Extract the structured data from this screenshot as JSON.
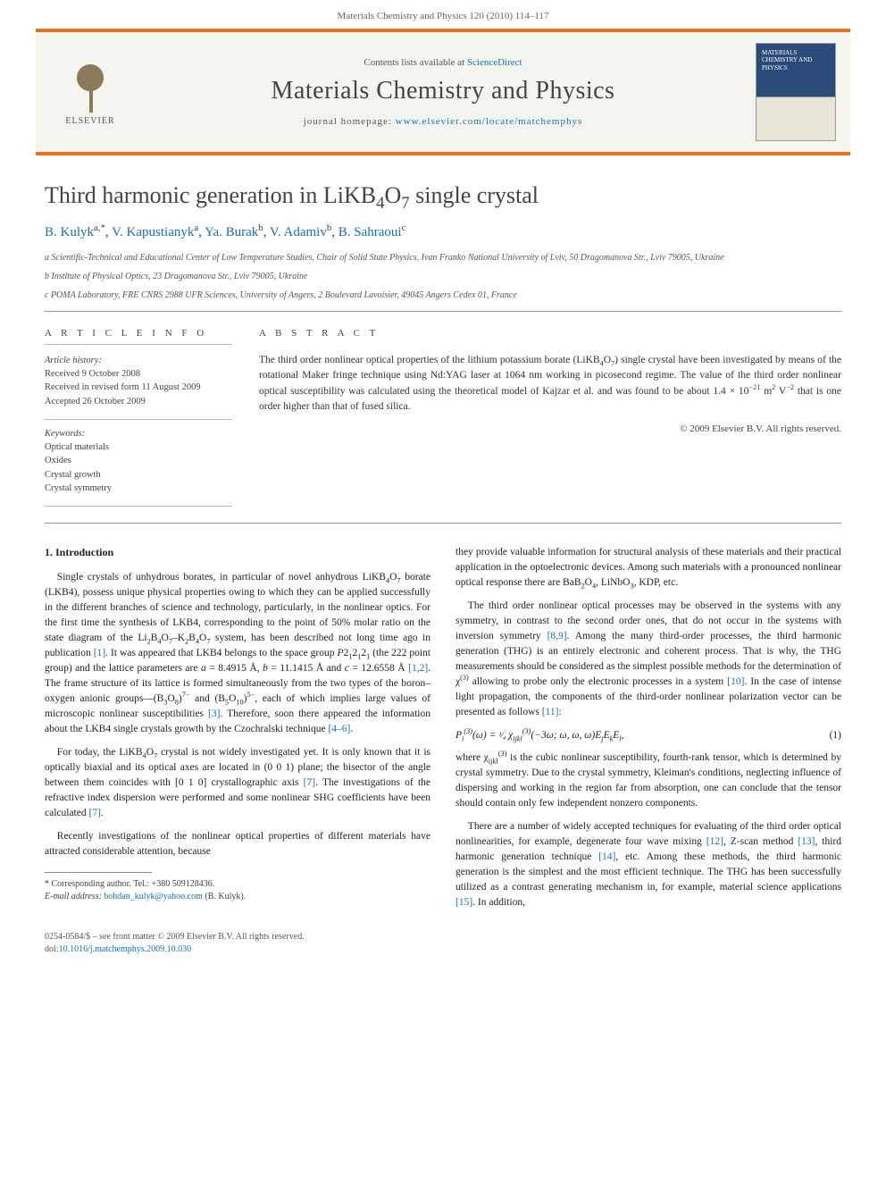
{
  "colors": {
    "accent": "#e57220",
    "link": "#1a6fb3",
    "masthead_bg": "#f5f5f0",
    "cover_top": "#2a4a7a",
    "cover_bottom": "#e8e4d8",
    "text": "#333333",
    "rule": "#999999"
  },
  "typography": {
    "title_fontsize": 26,
    "journal_fontsize": 28,
    "body_fontsize": 11.5,
    "meta_fontsize": 10.5
  },
  "header": {
    "running": "Materials Chemistry and Physics 120 (2010) 114–117"
  },
  "masthead": {
    "publisher": "ELSEVIER",
    "contents_prefix": "Contents lists available at ",
    "contents_link": "ScienceDirect",
    "journal": "Materials Chemistry and Physics",
    "homepage_prefix": "journal homepage: ",
    "homepage_url": "www.elsevier.com/locate/matchemphys",
    "cover_title": "MATERIALS\nCHEMISTRY AND\nPHYSICS"
  },
  "article": {
    "title_html": "Third harmonic generation in LiKB<sub>4</sub>O<sub>7</sub> single crystal",
    "authors_html": "<a href='#'>B. Kulyk</a><sup>a,*</sup>, <a href='#'>V. Kapustianyk</a><sup>a</sup>, <a href='#'>Ya. Burak</a><sup>b</sup>, <a href='#'>V. Adamiv</a><sup>b</sup>, <a href='#'>B. Sahraoui</a><sup>c</sup>",
    "affiliations": [
      "a Scientific-Technical and Educational Center of Low Temperature Studies, Chair of Solid State Physics, Ivan Franko National University of Lviv, 50 Dragomanova Str., Lviv 79005, Ukraine",
      "b Institute of Physical Optics, 23 Dragomanova Str., Lviv 79005, Ukraine",
      "c POMA Laboratory, FRE CNRS 2988 UFR Sciences, University of Angers, 2 Boulevard Lavoisier, 49045 Angers Cedex 01, France"
    ]
  },
  "meta": {
    "info_heading": "A R T I C L E   I N F O",
    "history_label": "Article history:",
    "history": [
      "Received 9 October 2008",
      "Received in revised form 11 August 2009",
      "Accepted 26 October 2009"
    ],
    "keywords_label": "Keywords:",
    "keywords": [
      "Optical materials",
      "Oxides",
      "Crystal growth",
      "Crystal symmetry"
    ]
  },
  "abstract": {
    "heading": "A B S T R A C T",
    "text_html": "The third order nonlinear optical properties of the lithium potassium borate (LiKB<sub>4</sub>O<sub>7</sub>) single crystal have been investigated by means of the rotational Maker fringe technique using Nd:YAG laser at 1064 nm working in picosecond regime. The value of the third order nonlinear optical susceptibility was calculated using the theoretical model of Kajzar et al. and was found to be about 1.4 × 10<sup>−21</sup> m<sup>2</sup> V<sup>−2</sup> that is one order higher than that of fused silica.",
    "copyright": "© 2009 Elsevier B.V. All rights reserved."
  },
  "body": {
    "section_heading": "1. Introduction",
    "p1_html": "Single crystals of unhydrous borates, in particular of novel anhydrous LiKB<sub>4</sub>O<sub>7</sub> borate (LKB4), possess unique physical properties owing to which they can be applied successfully in the different branches of science and technology, particularly, in the nonlinear optics. For the first time the synthesis of LKB4, corresponding to the point of 50% molar ratio on the state diagram of the Li<sub>2</sub>B<sub>4</sub>O<sub>7</sub>–K<sub>2</sub>B<sub>4</sub>O<sub>7</sub> system, has been described not long time ago in publication <span class='ref'>[1]</span>. It was appeared that LKB4 belongs to the space group <i>P</i>2<sub>1</sub>2<sub>1</sub>2<sub>1</sub> (the 222 point group) and the lattice parameters are <i>a</i> = 8.4915 Å, <i>b</i> = 11.1415 Å and <i>c</i> = 12.6558 Å <span class='ref'>[1,2]</span>. The frame structure of its lattice is formed simultaneously from the two types of the boron–oxygen anionic groups—(B<sub>3</sub>O<sub>8</sub>)<sup>7−</sup> and (B<sub>5</sub>O<sub>10</sub>)<sup>5−</sup>, each of which implies large values of microscopic nonlinear susceptibilities <span class='ref'>[3]</span>. Therefore, soon there appeared the information about the LKB4 single crystals growth by the Czochralski technique <span class='ref'>[4–6]</span>.",
    "p2_html": "For today, the LiKB<sub>4</sub>O<sub>7</sub> crystal is not widely investigated yet. It is only known that it is optically biaxial and its optical axes are located in (0 0 1) plane; the bisector of the angle between them coincides with [0 1 0] crystallographic axis <span class='ref'>[7]</span>. The investigations of the refractive index dispersion were performed and some nonlinear SHG coefficients have been calculated <span class='ref'>[7]</span>.",
    "p3_html": "Recently investigations of the nonlinear optical properties of different materials have attracted considerable attention, because",
    "p4_html": "they provide valuable information for structural analysis of these materials and their practical application in the optoelectronic devices. Among such materials with a pronounced nonlinear optical response there are BaB<sub>2</sub>O<sub>4</sub>, LiNbO<sub>3</sub>, KDP, etc.",
    "p5_html": "The third order nonlinear optical processes may be observed in the systems with any symmetry, in contrast to the second order ones, that do not occur in the systems with inversion symmetry <span class='ref'>[8,9]</span>. Among the many third-order processes, the third harmonic generation (THG) is an entirely electronic and coherent process. That is why, the THG measurements should be considered as the simplest possible methods for the determination of χ<sup>(3)</sup> allowing to probe only the electronic processes in a system <span class='ref'>[10]</span>. In the case of intense light propagation, the components of the third-order nonlinear polarization vector can be presented as follows <span class='ref'>[11]</span>:",
    "eq_html": "<i>P<sub>i</sub></i><sup>(3)</sup>(ω) = <span style='font-size:0.85em'>³⁄₄</span> χ<sub>ijkl</sub><sup>(3)</sup>(−3ω; ω, ω, ω)<i>E<sub>j</sub>E<sub>k</sub>E<sub>l</sub></i>,",
    "eq_num": "(1)",
    "p6_html": "where χ<sub>ijkl</sub><sup>(3)</sup> is the cubic nonlinear susceptibility, fourth-rank tensor, which is determined by crystal symmetry. Due to the crystal symmetry, Kleiman's conditions, neglecting influence of dispersing and working in the region far from absorption, one can conclude that the tensor should contain only few independent nonzero components.",
    "p7_html": "There are a number of widely accepted techniques for evaluating of the third order optical nonlinearities, for example, degenerate four wave mixing <span class='ref'>[12]</span>, Z-scan method <span class='ref'>[13]</span>, third harmonic generation technique <span class='ref'>[14]</span>, etc. Among these methods, the third harmonic generation is the simplest and the most efficient technique. The THG has been successfully utilized as a contrast generating mechanism in, for example, material science applications <span class='ref'>[15]</span>. In addition,"
  },
  "footnotes": {
    "corr": "* Corresponding author. Tel.: +380 509128436.",
    "email_label": "E-mail address: ",
    "email": "bohdan_kulyk@yahoo.com",
    "email_suffix": " (B. Kulyk)."
  },
  "bottom": {
    "line1": "0254-0584/$ – see front matter © 2009 Elsevier B.V. All rights reserved.",
    "doi_prefix": "doi:",
    "doi": "10.1016/j.matchemphys.2009.10.030"
  }
}
